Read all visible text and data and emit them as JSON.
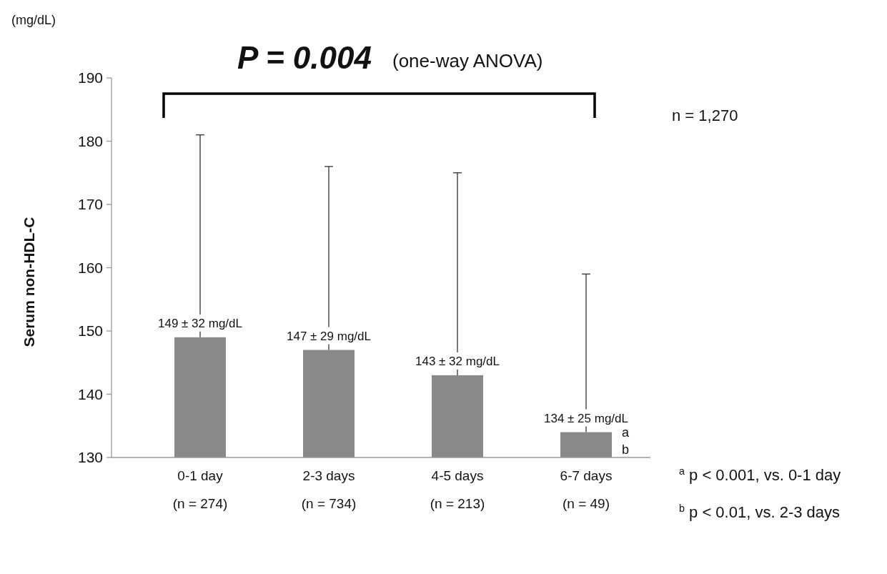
{
  "chart_data": {
    "type": "bar",
    "ylabel": "Serum non-HDL-C",
    "categories": [
      "0-1 day\n(n = 274)",
      "2-3 days\n(n = 734)",
      "4-5 days\n(n = 213)",
      "6-7 days\n(n = 49)"
    ],
    "values": [
      149,
      147,
      143,
      134
    ],
    "color": "#898989",
    "errors": [
      [
        149,
        181
      ],
      [
        147,
        176
      ],
      [
        143,
        175
      ],
      [
        134,
        159
      ]
    ],
    "value_labels": [
      "149 ± 32 mg/dL",
      "147 ± 29 mg/dL",
      "143 ± 32 mg/dL",
      "134 ± 25 mg/dL"
    ],
    "ylim": [
      130,
      190
    ],
    "yticks": [
      130,
      140,
      150,
      160,
      170,
      180,
      190
    ],
    "grid": false,
    "annotations": [
      "(mg/dL)",
      "P = 0.004",
      "(one-way ANOVA)",
      "n = 1,270",
      "a",
      "b",
      "$^{a}$ p < 0.001, vs. 0-1 day",
      "$^{b}$ p < 0.01, vs. 2-3 days"
    ]
  }
}
